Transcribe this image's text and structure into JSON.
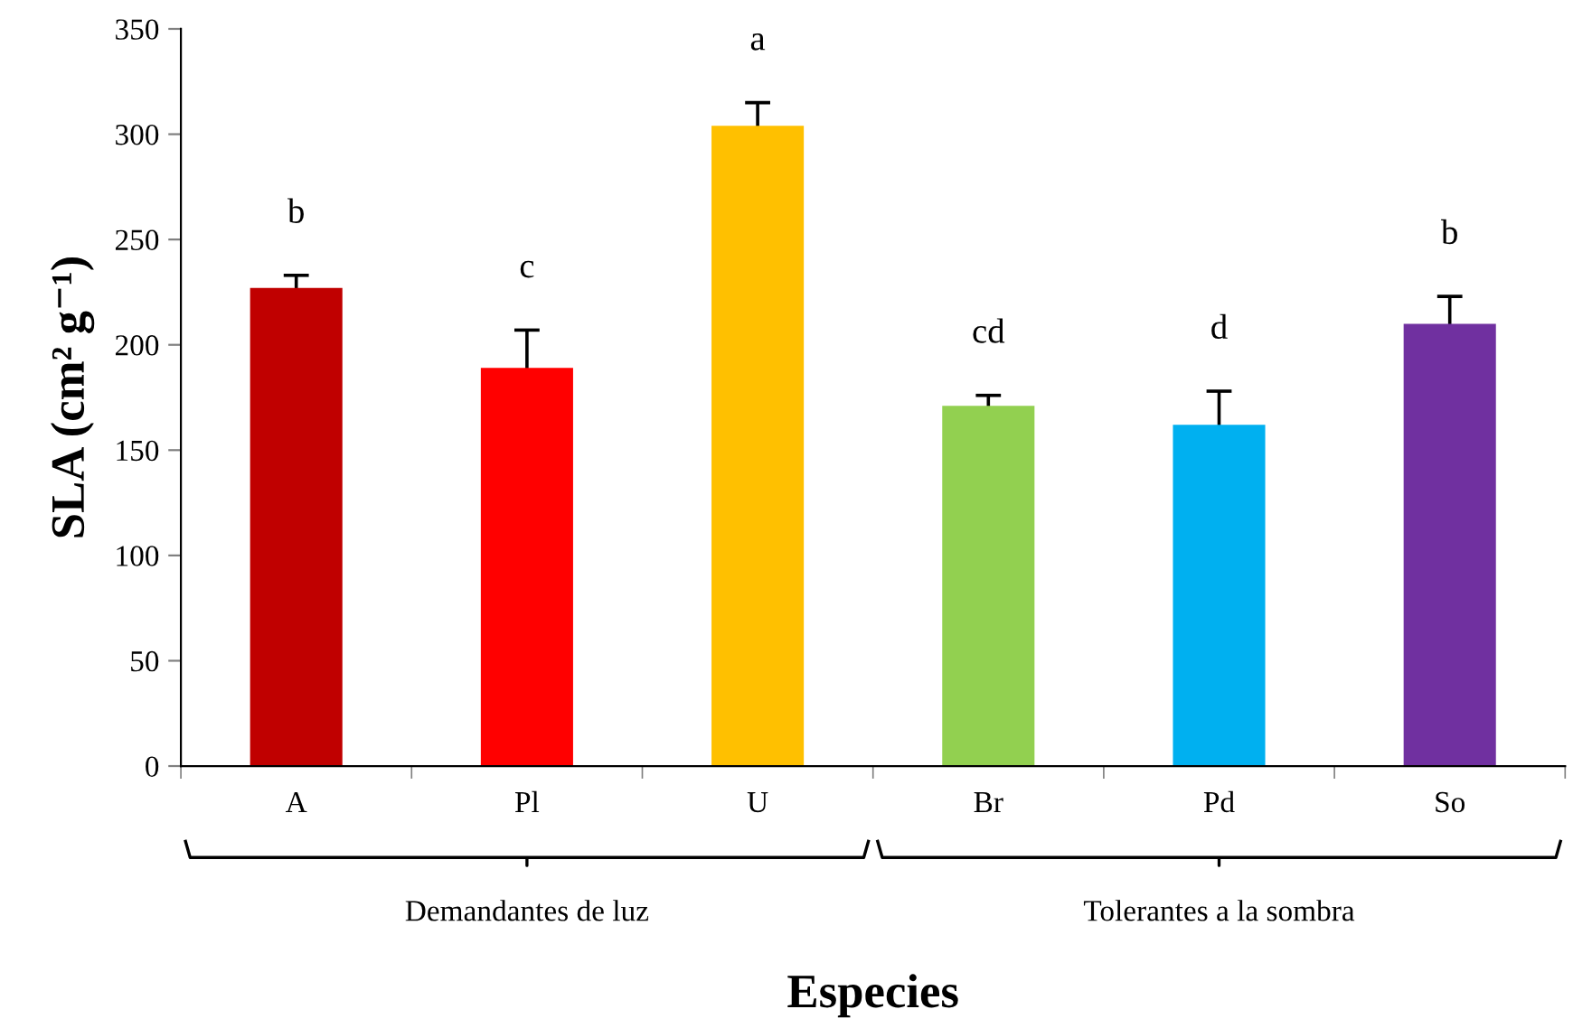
{
  "chart_data": {
    "type": "bar",
    "categories": [
      "A",
      "Pl",
      "U",
      "Br",
      "Pd",
      "So"
    ],
    "values": [
      227,
      189,
      304,
      171,
      162,
      210
    ],
    "errors": [
      6,
      18,
      11,
      5,
      16,
      13
    ],
    "colors": [
      "#c00000",
      "#ff0000",
      "#ffc000",
      "#92d050",
      "#00b0f0",
      "#7030a0"
    ],
    "ylim": [
      0,
      350
    ],
    "yticks": [
      0,
      50,
      100,
      150,
      200,
      250,
      300,
      350
    ],
    "xlabel": "Especies",
    "ylabel": "SLA (cm² g⁻¹)",
    "grid": false,
    "legend": false,
    "annotations": [
      "b",
      "c",
      "a",
      "cd",
      "d",
      "b",
      "Demandantes de luz",
      "Tolerantes a la sombra"
    ]
  }
}
